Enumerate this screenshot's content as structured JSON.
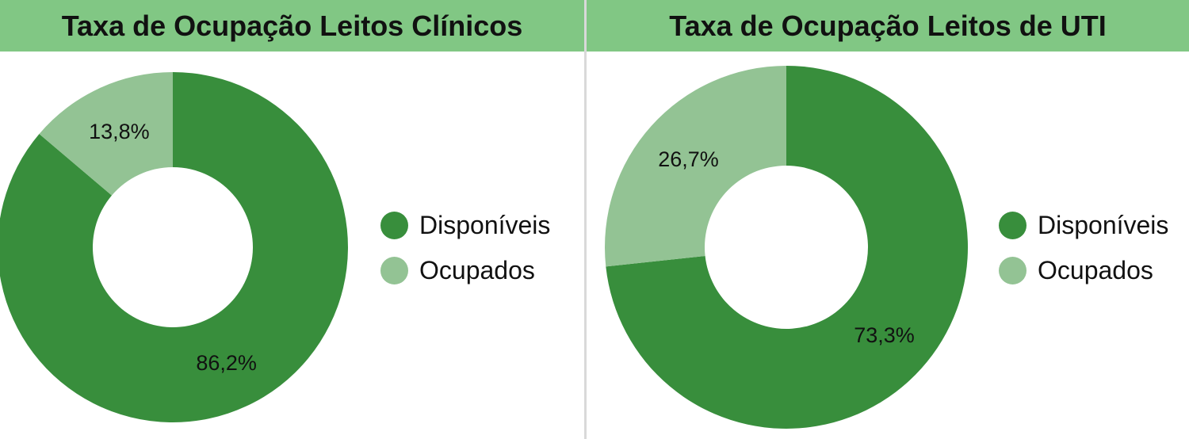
{
  "colors": {
    "title_bar": "#81c784",
    "disponiveis": "#388e3c",
    "ocupados": "#93c394"
  },
  "chart_data": [
    {
      "type": "pie",
      "title": "Taxa de Ocupação Leitos Clínicos",
      "legend": [
        "Disponíveis",
        "Ocupados"
      ],
      "legend_position": "right",
      "slices": [
        {
          "label": "Disponíveis",
          "value": 86.2,
          "display": "86,2%",
          "color": "#388e3c"
        },
        {
          "label": "Ocupados",
          "value": 13.8,
          "display": "13,8%",
          "color": "#93c394"
        }
      ]
    },
    {
      "type": "pie",
      "title": "Taxa de Ocupação Leitos de UTI",
      "legend": [
        "Disponíveis",
        "Ocupados"
      ],
      "legend_position": "right",
      "slices": [
        {
          "label": "Disponíveis",
          "value": 73.3,
          "display": "73,3%",
          "color": "#388e3c"
        },
        {
          "label": "Ocupados",
          "value": 26.7,
          "display": "26,7%",
          "color": "#93c394"
        }
      ]
    }
  ]
}
